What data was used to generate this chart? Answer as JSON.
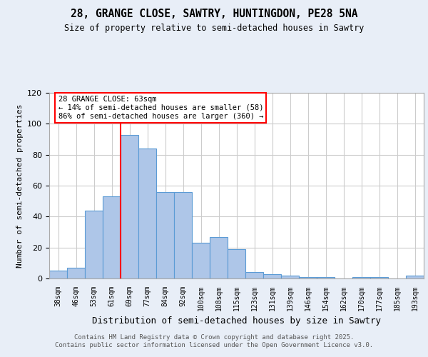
{
  "title_line1": "28, GRANGE CLOSE, SAWTRY, HUNTINGDON, PE28 5NA",
  "title_line2": "Size of property relative to semi-detached houses in Sawtry",
  "xlabel": "Distribution of semi-detached houses by size in Sawtry",
  "ylabel": "Number of semi-detached properties",
  "categories": [
    "38sqm",
    "46sqm",
    "53sqm",
    "61sqm",
    "69sqm",
    "77sqm",
    "84sqm",
    "92sqm",
    "100sqm",
    "108sqm",
    "115sqm",
    "123sqm",
    "131sqm",
    "139sqm",
    "146sqm",
    "154sqm",
    "162sqm",
    "170sqm",
    "177sqm",
    "185sqm",
    "193sqm"
  ],
  "values": [
    5,
    7,
    44,
    53,
    93,
    84,
    56,
    56,
    23,
    27,
    19,
    4,
    3,
    2,
    1,
    1,
    0,
    1,
    1,
    0,
    2
  ],
  "bar_color": "#aec6e8",
  "bar_edge_color": "#5b9bd5",
  "annotation_title": "28 GRANGE CLOSE: 63sqm",
  "annotation_line1": "← 14% of semi-detached houses are smaller (58)",
  "annotation_line2": "86% of semi-detached houses are larger (360) →",
  "annotation_box_color": "white",
  "annotation_box_edge": "red",
  "line_color": "red",
  "footer_line1": "Contains HM Land Registry data © Crown copyright and database right 2025.",
  "footer_line2": "Contains public sector information licensed under the Open Government Licence v3.0.",
  "bg_color": "#e8eef7",
  "plot_bg_color": "white",
  "ylim": [
    0,
    120
  ],
  "yticks": [
    0,
    20,
    40,
    60,
    80,
    100,
    120
  ]
}
